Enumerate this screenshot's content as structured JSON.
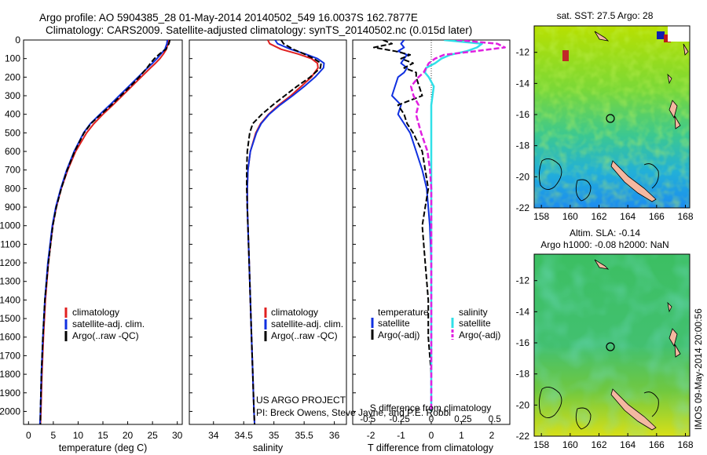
{
  "header": {
    "line1": "Argo profile: AO 5904385_28 01-May-2014 20140502_549 16.0037S 162.7877E",
    "line2": "Climatology: CARS2009. Satellite-adjusted climatology: synTS_20140502.nc (0.015d later)"
  },
  "sst_title": "sat. SST: 27.5 Argo: 28",
  "sla_title1": "Altim. SLA: -0.14",
  "sla_title2": "Argo h1000: -0.08 h2000: NaN",
  "footer": {
    "project": "US ARGO PROJECT",
    "pi": "PI: Breck Owens, Steve Jayne, and P.E. Robbi",
    "stamp": "IMOS 09-May-2014 20:00:56"
  },
  "colors": {
    "climatology": "#e02020",
    "satellite": "#1030e0",
    "argo": "#000000",
    "sal_sat": "#30e0e8",
    "sal_argo": "#e020e0"
  },
  "chart_data": [
    {
      "type": "line",
      "name": "temperature",
      "xlabel": "temperature (deg C)",
      "ylabel": "",
      "xlim": [
        -1,
        31
      ],
      "ylim": [
        2070,
        0
      ],
      "xticks": [
        "0",
        "5",
        "10",
        "15",
        "20",
        "25",
        "30"
      ],
      "yticks": [
        "0",
        "100",
        "200",
        "300",
        "400",
        "500",
        "600",
        "700",
        "800",
        "900",
        "1000",
        "1100",
        "1200",
        "1300",
        "1400",
        "1500",
        "1600",
        "1700",
        "1800",
        "1900",
        "2000"
      ],
      "legend": [
        "climatology",
        "satellite-adj. clim.",
        "Argo(..raw -QC)"
      ],
      "depth": [
        0,
        20,
        50,
        75,
        100,
        125,
        150,
        200,
        250,
        300,
        350,
        400,
        450,
        500,
        600,
        700,
        800,
        900,
        1000,
        1200,
        1400,
        1600,
        1800,
        2000,
        2070
      ],
      "series": [
        {
          "name": "climatology",
          "values": [
            28.2,
            28.1,
            27.8,
            27.2,
            26.5,
            25.6,
            24.6,
            22.7,
            20.8,
            18.9,
            17.0,
            15.0,
            13.2,
            11.7,
            9.5,
            7.9,
            6.6,
            5.6,
            4.9,
            4.0,
            3.4,
            3.0,
            2.7,
            2.5,
            2.4
          ]
        },
        {
          "name": "satellite-adj. clim.",
          "values": [
            28.0,
            27.9,
            27.5,
            26.7,
            25.9,
            25.0,
            24.0,
            22.1,
            20.2,
            18.3,
            16.4,
            14.4,
            12.5,
            11.1,
            9.2,
            7.7,
            6.5,
            5.5,
            4.8,
            3.9,
            3.3,
            2.9,
            2.6,
            2.4,
            2.3
          ]
        },
        {
          "name": "Argo(..raw -QC)",
          "values": [
            28.5,
            28.3,
            27.7,
            26.4,
            25.4,
            24.6,
            23.9,
            22.3,
            20.5,
            18.6,
            16.7,
            14.6,
            12.6,
            11.2,
            9.3,
            7.8,
            6.6,
            5.6,
            4.9,
            4.0,
            3.3,
            2.9,
            2.6,
            2.4,
            2.4
          ]
        }
      ]
    },
    {
      "type": "line",
      "name": "salinity",
      "xlabel": "salinity",
      "xlim": [
        33.6,
        36.2
      ],
      "ylim": [
        2070,
        0
      ],
      "xticks": [
        "34",
        "34.5",
        "35",
        "35.5",
        "36"
      ],
      "legend": [
        "climatology",
        "satellite-adj. clim.",
        "Argo(..raw -QC)"
      ],
      "depth": [
        0,
        20,
        50,
        75,
        100,
        125,
        150,
        200,
        250,
        300,
        350,
        400,
        450,
        500,
        600,
        700,
        800,
        900,
        1000,
        1200,
        1400,
        1600,
        1800,
        2000,
        2070
      ],
      "series": [
        {
          "name": "climatology",
          "values": [
            34.9,
            34.93,
            35.12,
            35.4,
            35.62,
            35.72,
            35.73,
            35.62,
            35.45,
            35.28,
            35.08,
            34.91,
            34.78,
            34.7,
            34.61,
            34.57,
            34.56,
            34.56,
            34.57,
            34.59,
            34.61,
            34.63,
            34.65,
            34.67,
            34.68
          ]
        },
        {
          "name": "satellite-adj. clim.",
          "values": [
            35.02,
            35.06,
            35.28,
            35.52,
            35.72,
            35.83,
            35.82,
            35.68,
            35.5,
            35.31,
            35.1,
            34.92,
            34.79,
            34.71,
            34.61,
            34.57,
            34.56,
            34.56,
            34.57,
            34.59,
            34.61,
            34.63,
            34.65,
            34.67,
            34.68
          ]
        },
        {
          "name": "Argo(..raw -QC)",
          "values": [
            35.12,
            35.16,
            35.32,
            35.5,
            35.66,
            35.78,
            35.77,
            35.6,
            35.38,
            35.18,
            34.98,
            34.8,
            34.65,
            34.6,
            34.56,
            34.55,
            34.55,
            34.56,
            34.57,
            34.59,
            34.61,
            34.63,
            34.65,
            34.67,
            34.68
          ]
        }
      ]
    },
    {
      "type": "line",
      "name": "differences",
      "xlabel": "T difference from climatology",
      "xlabel_top": "S difference from climatology",
      "xlim": [
        -2.6,
        2.6
      ],
      "ylim": [
        2070,
        0
      ],
      "xticks": [
        "-2",
        "-1",
        "0",
        "1",
        "2"
      ],
      "xticks_top": [
        "-0.5",
        "-0.25",
        "0",
        "0.25",
        "0.5"
      ],
      "legend_left_title": "temperature",
      "legend_right_title": "salinity",
      "legend": [
        "satellite",
        "Argo(-adj)",
        "satellite",
        "Argo(-adj)"
      ],
      "depth": [
        0,
        20,
        40,
        60,
        80,
        100,
        125,
        150,
        175,
        200,
        250,
        300,
        350,
        400,
        450,
        500,
        600,
        700,
        800,
        900,
        1000,
        1200,
        1400,
        1600,
        1800,
        2000
      ],
      "series": [
        {
          "name": "temperature satellite",
          "values": [
            -0.9,
            -1.0,
            -0.9,
            -1.1,
            -0.8,
            -0.9,
            -1.0,
            -0.8,
            -0.9,
            -1.1,
            -1.2,
            -1.3,
            -1.0,
            -1.1,
            -0.9,
            -0.7,
            -0.5,
            -0.3,
            -0.15,
            -0.1,
            -0.05,
            0,
            0,
            0,
            0,
            0
          ]
        },
        {
          "name": "temperature Argo(-adj)",
          "values": [
            -1.6,
            -1.3,
            -1.9,
            -1.2,
            -0.7,
            -1.0,
            -0.6,
            -0.9,
            -0.5,
            -0.5,
            -0.4,
            -0.3,
            -1.1,
            -0.9,
            -0.8,
            -0.6,
            -0.3,
            -0.2,
            -0.1,
            -0.2,
            -0.3,
            -0.2,
            -0.1,
            -0.1,
            0,
            0
          ]
        },
        {
          "name": "salinity satellite",
          "values": [
            0.1,
            0.4,
            0.36,
            0.28,
            0.15,
            0.08,
            0.03,
            -0.04,
            -0.05,
            -0.02,
            0.02,
            0.01,
            0,
            0,
            0,
            0,
            0,
            0,
            0,
            0,
            0,
            0,
            0,
            0,
            0,
            0
          ]
        },
        {
          "name": "salinity Argo(-adj)",
          "values": [
            0.2,
            0.52,
            0.58,
            0.35,
            0.1,
            0.03,
            -0.02,
            -0.04,
            -0.06,
            -0.1,
            -0.16,
            -0.14,
            -0.1,
            -0.12,
            -0.1,
            -0.08,
            -0.03,
            -0.01,
            0,
            0,
            0,
            0,
            0,
            0,
            0,
            0
          ]
        }
      ]
    },
    {
      "type": "heatmap",
      "name": "sat-sst-map",
      "title": "sat. SST: 27.5 Argo: 28",
      "xlim": [
        157.5,
        168.3
      ],
      "ylim": [
        -22,
        -10.3
      ],
      "xticks": [
        "158",
        "160",
        "162",
        "164",
        "166",
        "168"
      ],
      "yticks": [
        "-12",
        "-14",
        "-16",
        "-18",
        "-20",
        "-22"
      ],
      "argo_lon": 162.79,
      "argo_lat": -16.0
    },
    {
      "type": "heatmap",
      "name": "sla-map",
      "title": "Altim. SLA: -0.14",
      "xlim": [
        157.5,
        168.3
      ],
      "ylim": [
        -22,
        -10.3
      ],
      "xticks": [
        "158",
        "160",
        "162",
        "164",
        "166",
        "168"
      ],
      "yticks": [
        "-12",
        "-14",
        "-16",
        "-18",
        "-20",
        "-22"
      ],
      "argo_lon": 162.79,
      "argo_lat": -16.0
    }
  ]
}
